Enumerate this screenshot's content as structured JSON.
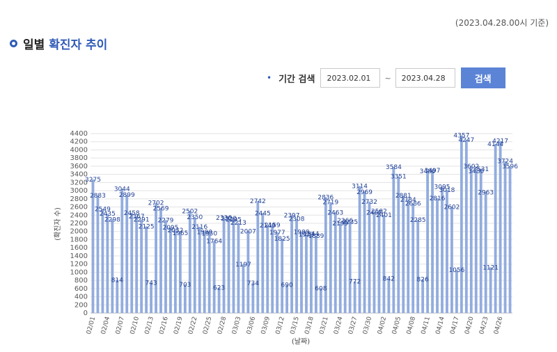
{
  "header": {
    "notice": "(2023.04.28.00시 기준)",
    "title_prefix": "일별",
    "title_accent": "확진자 추이"
  },
  "search": {
    "label": "기간 검색",
    "start_date": "2023.02.01",
    "separator": "~",
    "end_date": "2023.04.28",
    "button_label": "검색"
  },
  "colors": {
    "bar": "#92acde",
    "accent": "#2f5bb7",
    "button": "#5b84d6",
    "label": "#1f3f95"
  },
  "chart_data": {
    "type": "bar",
    "xlabel": "(날짜)",
    "ylabel": "(확진자 수)",
    "ylim": [
      0,
      4400
    ],
    "yticks": [
      0,
      200,
      400,
      600,
      800,
      1000,
      1200,
      1400,
      1600,
      1800,
      2000,
      2200,
      2400,
      2600,
      2800,
      3000,
      3200,
      3400,
      3600,
      3800,
      4000,
      4200,
      4400
    ],
    "grid": true,
    "categories": [
      "02/01",
      "02/02",
      "02/03",
      "02/04",
      "02/05",
      "02/06",
      "02/07",
      "02/08",
      "02/09",
      "02/10",
      "02/11",
      "02/12",
      "02/13",
      "02/14",
      "02/15",
      "02/16",
      "02/17",
      "02/18",
      "02/19",
      "02/20",
      "02/21",
      "02/22",
      "02/23",
      "02/24",
      "02/25",
      "02/26",
      "02/27",
      "02/28",
      "03/01",
      "03/02",
      "03/03",
      "03/04",
      "03/05",
      "03/06",
      "03/07",
      "03/08",
      "03/09",
      "03/10",
      "03/11",
      "03/12",
      "03/13",
      "03/14",
      "03/15",
      "03/16",
      "03/17",
      "03/18",
      "03/19",
      "03/20",
      "03/21",
      "03/22",
      "03/23",
      "03/24",
      "03/25",
      "03/26",
      "03/27",
      "03/28",
      "03/29",
      "03/30",
      "03/31",
      "04/01",
      "04/02",
      "04/03",
      "04/04",
      "04/05",
      "04/06",
      "04/07",
      "04/08",
      "04/09",
      "04/10",
      "04/11",
      "04/12",
      "04/13",
      "04/14",
      "04/15",
      "04/16",
      "04/17",
      "04/18",
      "04/19",
      "04/20",
      "04/21",
      "04/22",
      "04/23",
      "04/24",
      "04/25",
      "04/26",
      "04/27",
      "04/28"
    ],
    "tick_labels": [
      "02/01",
      "02/04",
      "02/07",
      "02/10",
      "02/13",
      "02/16",
      "02/19",
      "02/22",
      "02/25",
      "02/28",
      "03/03",
      "03/06",
      "03/09",
      "03/12",
      "03/15",
      "03/18",
      "03/21",
      "03/24",
      "03/27",
      "03/30",
      "04/02",
      "04/05",
      "04/08",
      "04/11",
      "04/14",
      "04/17",
      "04/20",
      "04/23",
      "04/26"
    ],
    "values": [
      3275,
      2883,
      2549,
      2435,
      2298,
      814,
      3044,
      2899,
      2458,
      2367,
      2291,
      2125,
      743,
      2702,
      2569,
      2279,
      2095,
      2032,
      1965,
      703,
      2502,
      2350,
      2116,
      1990,
      1950,
      1764,
      623,
      2336,
      2320,
      2295,
      2213,
      1197,
      2007,
      734,
      2742,
      2445,
      2149,
      2159,
      1977,
      1825,
      690,
      2397,
      2308,
      1988,
      1923,
      1944,
      1889,
      608,
      2836,
      2719,
      2463,
      2199,
      2266,
      2235,
      772,
      3114,
      2969,
      2732,
      2467,
      2502,
      2401,
      842,
      3584,
      3351,
      2881,
      2784,
      2686,
      2285,
      826,
      3480,
      3497,
      2816,
      3095,
      3018,
      2602,
      1056,
      4357,
      4247,
      3602,
      3480,
      3531,
      2963,
      1121,
      4144,
      4217,
      3724,
      3596
    ],
    "data_labels": [
      "3275",
      "2883",
      "2549",
      "2435",
      "2298",
      "814",
      "3044",
      "2899",
      "2458",
      "2367",
      "2291",
      "2125",
      "743",
      "2702",
      "2569",
      "2279",
      "2095",
      "2032",
      "1965",
      "703",
      "2502",
      "2350",
      "2116",
      "1990",
      "1950",
      "1764",
      "623",
      "2336",
      "2320",
      "2295",
      "2213",
      "1197",
      "2007",
      "734",
      "2742",
      "2445",
      "2149",
      "2159",
      "1977",
      "1825",
      "690",
      "2397",
      "2308",
      "1988",
      "1923",
      "1944",
      "1889",
      "608",
      "2836",
      "2719",
      "2463",
      "2199",
      "2266",
      "2235",
      "772",
      "3114",
      "2969",
      "2732",
      "2467",
      "2502",
      "2401",
      "842",
      "3584",
      "3351",
      "2881",
      "2784",
      "2686",
      "2285",
      "826",
      "3480",
      "3497",
      "2816",
      "3095",
      "3018",
      "2602",
      "1056",
      "4357",
      "4247",
      "3602",
      "3480",
      "3531",
      "2963",
      "1121",
      "4144",
      "4217",
      "3724",
      "3596"
    ]
  }
}
